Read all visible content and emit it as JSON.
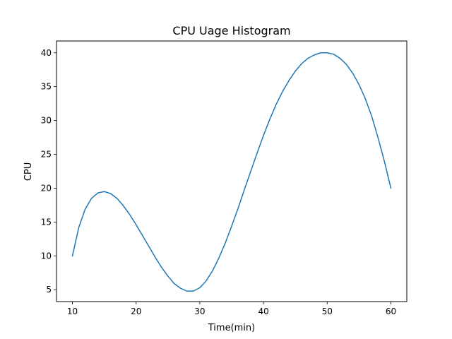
{
  "chart_data": {
    "type": "line",
    "title": "CPU Uage Histogram",
    "xlabel": "Time(min)",
    "ylabel": "CPU",
    "xlim": [
      7.5,
      62.5
    ],
    "ylim": [
      3.25,
      41.75
    ],
    "xticks": [
      10,
      20,
      30,
      40,
      50,
      60
    ],
    "yticks": [
      5,
      10,
      15,
      20,
      25,
      30,
      35,
      40
    ],
    "grid": false,
    "legend": "none",
    "series": [
      {
        "color": "#1f77b4",
        "x": [
          10,
          11,
          12,
          13,
          14,
          15,
          16,
          17,
          18,
          19,
          20,
          21,
          22,
          23,
          24,
          25,
          26,
          27,
          28,
          29,
          30,
          31,
          32,
          33,
          34,
          35,
          36,
          37,
          38,
          39,
          40,
          41,
          42,
          43,
          44,
          45,
          46,
          47,
          48,
          49,
          50,
          51,
          52,
          53,
          54,
          55,
          56,
          57,
          58,
          59,
          60
        ],
        "y": [
          10.0,
          14.2,
          16.9,
          18.5,
          19.3,
          19.5,
          19.2,
          18.5,
          17.4,
          16.1,
          14.6,
          13.0,
          11.4,
          9.8,
          8.3,
          7.0,
          5.9,
          5.2,
          4.8,
          4.8,
          5.3,
          6.3,
          7.8,
          9.7,
          11.9,
          14.4,
          17.0,
          19.8,
          22.5,
          25.2,
          27.8,
          30.2,
          32.4,
          34.3,
          35.9,
          37.3,
          38.4,
          39.2,
          39.7,
          40.0,
          40.0,
          39.8,
          39.2,
          38.3,
          37.0,
          35.3,
          33.2,
          30.6,
          27.4,
          23.9,
          20.0
        ]
      }
    ]
  }
}
